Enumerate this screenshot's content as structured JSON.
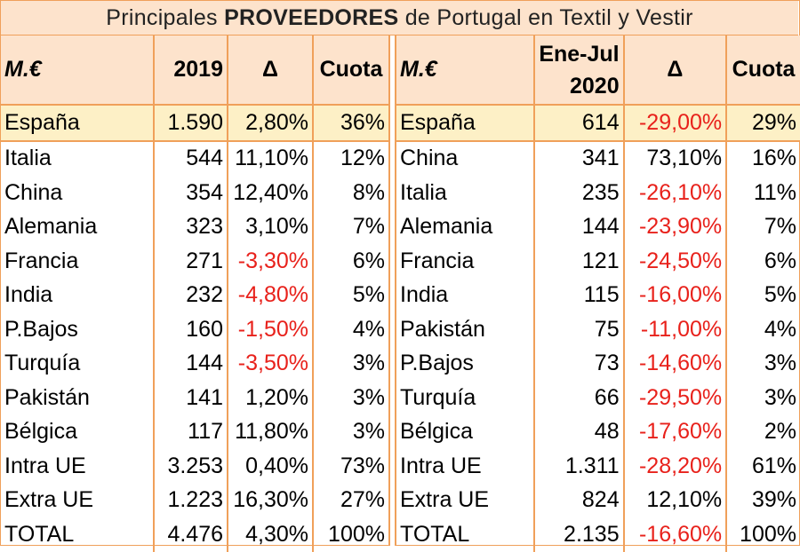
{
  "title": {
    "pre": "Principales ",
    "bold": "PROVEEDORES",
    "post": " de Portugal en Textil y Vestir"
  },
  "left": {
    "headers": {
      "label": "M.€",
      "year": "2019",
      "delta": "Δ",
      "share": "Cuota"
    },
    "rows": [
      {
        "name": "España",
        "value": "1.590",
        "delta": "2,80%",
        "share": "36%"
      },
      {
        "name": "Italia",
        "value": "544",
        "delta": "11,10%",
        "share": "12%"
      },
      {
        "name": "China",
        "value": "354",
        "delta": "12,40%",
        "share": "8%"
      },
      {
        "name": "Alemania",
        "value": "323",
        "delta": "3,10%",
        "share": "7%"
      },
      {
        "name": "Francia",
        "value": "271",
        "delta": "-3,30%",
        "share": "6%"
      },
      {
        "name": "India",
        "value": "232",
        "delta": "-4,80%",
        "share": "5%"
      },
      {
        "name": "P.Bajos",
        "value": "160",
        "delta": "-1,50%",
        "share": "4%"
      },
      {
        "name": "Turquía",
        "value": "144",
        "delta": "-3,50%",
        "share": "3%"
      },
      {
        "name": "Pakistán",
        "value": "141",
        "delta": "1,20%",
        "share": "3%"
      },
      {
        "name": "Bélgica",
        "value": "117",
        "delta": "11,80%",
        "share": "3%"
      },
      {
        "name": "Intra UE",
        "value": "3.253",
        "delta": "0,40%",
        "share": "73%"
      },
      {
        "name": "Extra UE",
        "value": "1.223",
        "delta": "16,30%",
        "share": "27%"
      },
      {
        "name": "TOTAL",
        "value": "4.476",
        "delta": "4,30%",
        "share": "100%"
      }
    ]
  },
  "right": {
    "headers": {
      "label": "M.€",
      "year_line1": "Ene-Jul",
      "year_line2": "2020",
      "delta": "Δ",
      "share": "Cuota"
    },
    "rows": [
      {
        "name": "España",
        "value": "614",
        "delta": "-29,00%",
        "share": "29%"
      },
      {
        "name": "China",
        "value": "341",
        "delta": "73,10%",
        "share": "16%"
      },
      {
        "name": "Italia",
        "value": "235",
        "delta": "-26,10%",
        "share": "11%"
      },
      {
        "name": "Alemania",
        "value": "144",
        "delta": "-23,90%",
        "share": "7%"
      },
      {
        "name": "Francia",
        "value": "121",
        "delta": "-24,50%",
        "share": "6%"
      },
      {
        "name": "India",
        "value": "115",
        "delta": "-16,00%",
        "share": "5%"
      },
      {
        "name": "Pakistán",
        "value": "75",
        "delta": "-11,00%",
        "share": "4%"
      },
      {
        "name": "P.Bajos",
        "value": "73",
        "delta": "-14,60%",
        "share": "3%"
      },
      {
        "name": "Turquía",
        "value": "66",
        "delta": "-29,50%",
        "share": "3%"
      },
      {
        "name": "Bélgica",
        "value": "48",
        "delta": "-17,60%",
        "share": "2%"
      },
      {
        "name": "Intra UE",
        "value": "1.311",
        "delta": "-28,20%",
        "share": "61%"
      },
      {
        "name": "Extra UE",
        "value": "824",
        "delta": "12,10%",
        "share": "39%"
      },
      {
        "name": "TOTAL",
        "value": "2.135",
        "delta": "-16,60%",
        "share": "100%"
      }
    ]
  },
  "colors": {
    "header_bg": "#fde3cc",
    "highlight_bg": "#fdf0c6",
    "border": "#f0a05a",
    "negative": "#e8211b"
  }
}
